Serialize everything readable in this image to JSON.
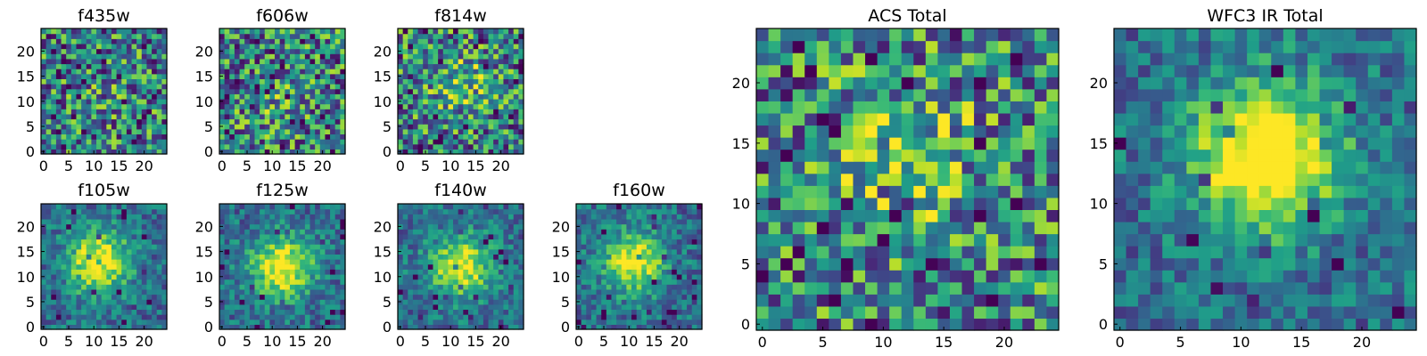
{
  "chart_data": [
    {
      "type": "heatmap",
      "title": "f435w",
      "xlim": [
        0,
        24
      ],
      "ylim": [
        0,
        24
      ],
      "xticks": [
        0,
        5,
        10,
        15,
        20
      ],
      "yticks": [
        0,
        5,
        10,
        15,
        20
      ],
      "colormap": "viridis",
      "image": "noise",
      "blob": {
        "x": 12,
        "y": 12,
        "strength": 0.05
      }
    },
    {
      "type": "heatmap",
      "title": "f606w",
      "xlim": [
        0,
        24
      ],
      "ylim": [
        0,
        24
      ],
      "xticks": [
        0,
        5,
        10,
        15,
        20
      ],
      "yticks": [
        0,
        5,
        10,
        15,
        20
      ],
      "colormap": "viridis",
      "image": "noise",
      "blob": {
        "x": 11,
        "y": 10,
        "strength": 0.12
      }
    },
    {
      "type": "heatmap",
      "title": "f814w",
      "xlim": [
        0,
        24
      ],
      "ylim": [
        0,
        24
      ],
      "xticks": [
        0,
        5,
        10,
        15,
        20
      ],
      "yticks": [
        0,
        5,
        10,
        15,
        20
      ],
      "colormap": "viridis",
      "image": "noise",
      "blob": {
        "x": 12,
        "y": 14,
        "strength": 0.25
      }
    },
    {
      "type": "heatmap",
      "title": "f105w",
      "xlim": [
        0,
        24
      ],
      "ylim": [
        0,
        24
      ],
      "xticks": [
        0,
        5,
        10,
        15,
        20
      ],
      "yticks": [
        0,
        5,
        10,
        15,
        20
      ],
      "colormap": "viridis",
      "image": "source",
      "blob": {
        "x": 11,
        "y": 13,
        "strength": 0.7
      }
    },
    {
      "type": "heatmap",
      "title": "f125w",
      "xlim": [
        0,
        24
      ],
      "ylim": [
        0,
        24
      ],
      "xticks": [
        0,
        5,
        10,
        15,
        20
      ],
      "yticks": [
        0,
        5,
        10,
        15,
        20
      ],
      "colormap": "viridis",
      "image": "source",
      "blob": {
        "x": 12,
        "y": 12,
        "strength": 0.7
      }
    },
    {
      "type": "heatmap",
      "title": "f140w",
      "xlim": [
        0,
        24
      ],
      "ylim": [
        0,
        24
      ],
      "xticks": [
        0,
        5,
        10,
        15,
        20
      ],
      "yticks": [
        0,
        5,
        10,
        15,
        20
      ],
      "colormap": "viridis",
      "image": "source",
      "blob": {
        "x": 12,
        "y": 12,
        "strength": 0.65
      }
    },
    {
      "type": "heatmap",
      "title": "f160w",
      "xlim": [
        0,
        24
      ],
      "ylim": [
        0,
        24
      ],
      "xticks": [
        0,
        5,
        10,
        15,
        20
      ],
      "yticks": [
        0,
        5,
        10,
        15,
        20
      ],
      "colormap": "viridis",
      "image": "source",
      "blob": {
        "x": 11,
        "y": 13,
        "strength": 0.65
      }
    },
    {
      "type": "heatmap",
      "title": "ACS Total",
      "xlim": [
        0,
        24
      ],
      "ylim": [
        0,
        24
      ],
      "xticks": [
        0,
        5,
        10,
        15,
        20
      ],
      "yticks": [
        0,
        5,
        10,
        15,
        20
      ],
      "colormap": "viridis",
      "image": "noise",
      "blob": {
        "x": 12,
        "y": 14,
        "strength": 0.3
      }
    },
    {
      "type": "heatmap",
      "title": "WFC3 IR Total",
      "xlim": [
        0,
        24
      ],
      "ylim": [
        0,
        24
      ],
      "xticks": [
        0,
        5,
        10,
        15,
        20
      ],
      "yticks": [
        0,
        5,
        10,
        15,
        20
      ],
      "colormap": "viridis",
      "image": "source",
      "blob": {
        "x": 12,
        "y": 14,
        "strength": 0.85
      }
    }
  ]
}
